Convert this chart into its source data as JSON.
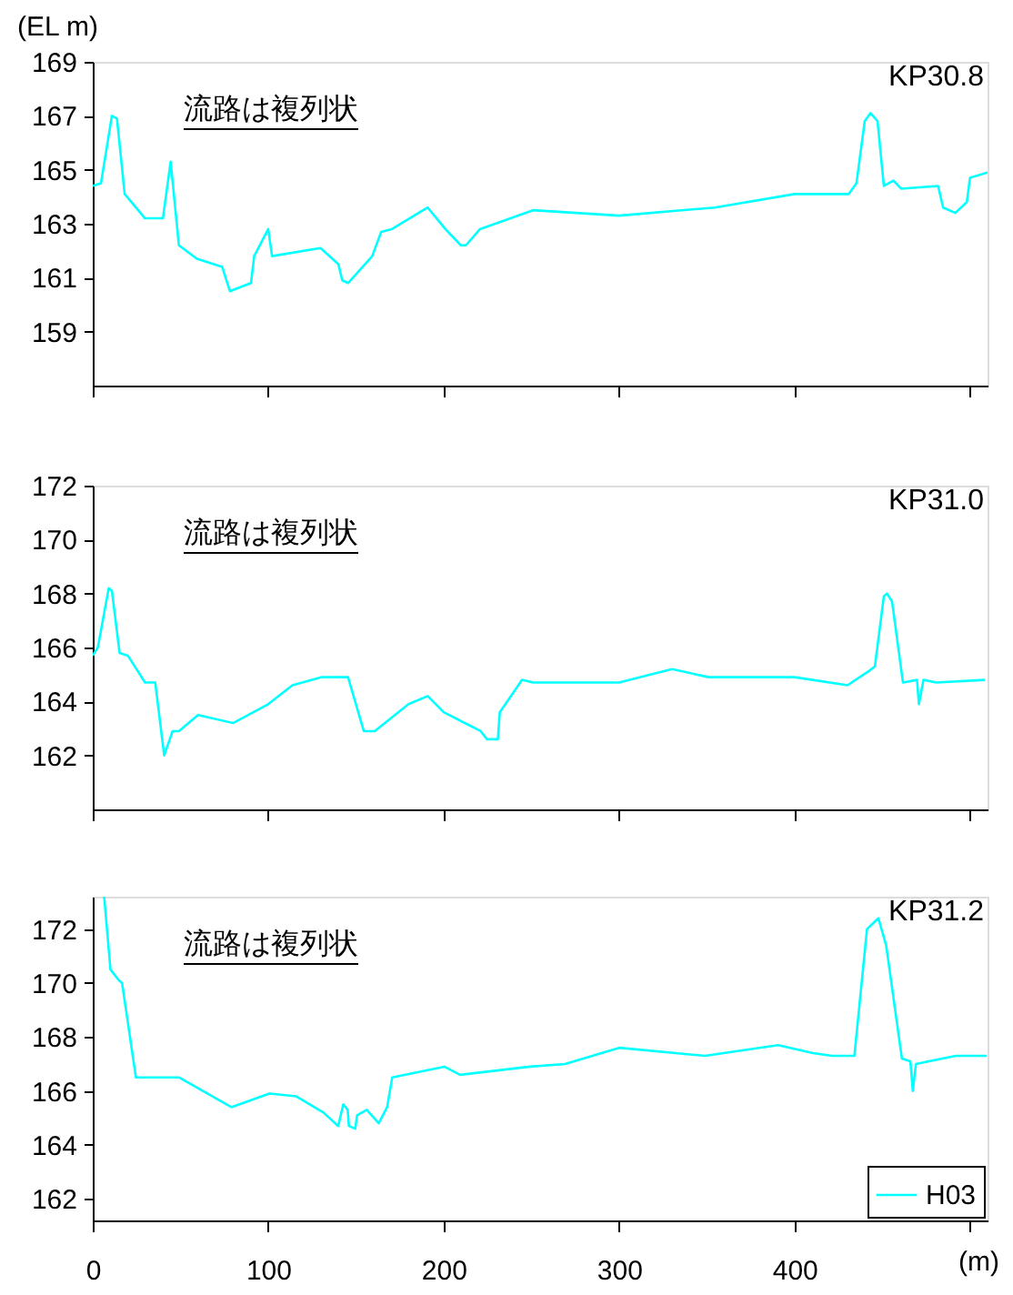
{
  "chart_data": [
    {
      "type": "line",
      "ylabel": "(EL m)",
      "annotations": [
        "流路は複列状",
        "KP30.8"
      ],
      "xlim": [
        0,
        510
      ],
      "xticks": [
        {
          "value": 0,
          "label": null
        },
        {
          "value": 100,
          "label": null
        },
        {
          "value": 200,
          "label": null
        },
        {
          "value": 300,
          "label": null
        },
        {
          "value": 400,
          "label": null
        },
        {
          "value": 500,
          "label": null
        }
      ],
      "ylim": [
        157,
        169
      ],
      "yticks": [
        159,
        161,
        163,
        165,
        167,
        169
      ],
      "tick_labels": "y",
      "grid": false,
      "legend": false,
      "x": [
        0,
        4.7,
        10.9,
        13.8,
        18.2,
        29.8,
        40,
        44.4,
        49.1,
        59.3,
        73.8,
        76.7,
        78.2,
        90.2,
        92,
        100,
        102.2,
        129.8,
        140,
        142.2,
        145.5,
        159.3,
        164.4,
        170.5,
        190.9,
        201,
        209.8,
        212.7,
        220.7,
        250.9,
        300,
        354.5,
        400,
        430.9,
        435.3,
        440,
        443.3,
        447.3,
        450.9,
        456.4,
        460.7,
        481.8,
        484.7,
        491.6,
        498.2,
        500,
        510
      ],
      "series": [
        {
          "color": "#00ffff",
          "values": [
            164.4,
            164.5,
            167.0,
            166.9,
            164.1,
            163.2,
            163.2,
            165.3,
            162.2,
            161.7,
            161.4,
            160.8,
            160.5,
            160.8,
            161.8,
            162.8,
            161.8,
            162.1,
            161.5,
            160.9,
            160.8,
            161.8,
            162.7,
            162.8,
            163.6,
            162.8,
            162.2,
            162.2,
            162.8,
            163.5,
            163.3,
            163.6,
            164.1,
            164.1,
            164.5,
            166.8,
            167.1,
            166.8,
            164.4,
            164.6,
            164.3,
            164.4,
            163.6,
            163.4,
            163.8,
            164.7,
            164.9
          ]
        }
      ]
    },
    {
      "type": "line",
      "annotations": [
        "流路は複列状",
        "KP31.0"
      ],
      "xlim": [
        0,
        510
      ],
      "xticks": [
        {
          "value": 0,
          "label": null
        },
        {
          "value": 100,
          "label": null
        },
        {
          "value": 200,
          "label": null
        },
        {
          "value": 300,
          "label": null
        },
        {
          "value": 400,
          "label": null
        },
        {
          "value": 500,
          "label": null
        }
      ],
      "ylim": [
        160,
        172
      ],
      "yticks": [
        162,
        164,
        166,
        168,
        170,
        172
      ],
      "tick_labels": "y",
      "grid": false,
      "legend": false,
      "x": [
        0,
        2.9,
        9.1,
        10.9,
        15.3,
        20,
        29.8,
        35.6,
        40.7,
        45.5,
        49.1,
        60,
        80,
        100,
        113.8,
        130.2,
        145.5,
        154.5,
        160.7,
        180,
        190.9,
        200,
        221.1,
        224.7,
        230.9,
        232,
        244.7,
        250.9,
        300,
        330.2,
        350.9,
        400,
        430.2,
        441.8,
        445.8,
        450.9,
        452.7,
        455.6,
        461.8,
        469.8,
        470.9,
        473.5,
        480.7,
        508.4
      ],
      "series": [
        {
          "color": "#00ffff",
          "values": [
            165.7,
            166.0,
            168.2,
            168.1,
            165.8,
            165.7,
            164.7,
            164.7,
            162.0,
            162.9,
            162.9,
            163.5,
            163.2,
            163.9,
            164.6,
            164.9,
            164.9,
            162.9,
            162.9,
            163.9,
            164.2,
            163.6,
            162.9,
            162.6,
            162.6,
            163.6,
            164.8,
            164.7,
            164.7,
            165.2,
            164.9,
            164.9,
            164.6,
            165.1,
            165.3,
            167.9,
            168.0,
            167.7,
            164.7,
            164.8,
            163.9,
            164.8,
            164.7,
            164.8
          ]
        }
      ]
    },
    {
      "type": "line",
      "xlabel": "(m)",
      "annotations": [
        "流路は複列状",
        "KP31.2"
      ],
      "xlim": [
        0,
        510
      ],
      "xticks": [
        0,
        100,
        200,
        300,
        400,
        {
          "value": 500,
          "label": null
        }
      ],
      "ylim": [
        161.2,
        173.2
      ],
      "yticks": [
        162,
        164,
        166,
        168,
        170,
        172
      ],
      "grid": false,
      "legend": "bottom right",
      "x": [
        6.5,
        10.1,
        14.9,
        16.7,
        24.6,
        49.3,
        79,
        100.7,
        116,
        131.5,
        139.9,
        142.8,
        145.3,
        146,
        149.6,
        150.7,
        156.2,
        163,
        167.8,
        170.7,
        200.4,
        209.4,
        249.3,
        269.2,
        300,
        348.9,
        390.6,
        410.5,
        421.4,
        434.1,
        441.3,
        447.8,
        452.2,
        461.2,
        466,
        467.4,
        469.2,
        492,
        509.4
      ],
      "series": [
        {
          "name": "H03",
          "color": "#00ffff",
          "values": [
            173.2,
            170.5,
            170.1,
            170.0,
            166.5,
            166.5,
            165.4,
            165.9,
            165.8,
            165.2,
            164.7,
            165.5,
            165.3,
            164.7,
            164.6,
            165.1,
            165.3,
            164.8,
            165.4,
            166.5,
            166.9,
            166.6,
            166.9,
            167.0,
            167.6,
            167.3,
            167.7,
            167.4,
            167.3,
            167.3,
            172.0,
            172.4,
            171.4,
            167.2,
            167.1,
            166.0,
            167.0,
            167.3,
            167.3
          ]
        }
      ]
    }
  ]
}
